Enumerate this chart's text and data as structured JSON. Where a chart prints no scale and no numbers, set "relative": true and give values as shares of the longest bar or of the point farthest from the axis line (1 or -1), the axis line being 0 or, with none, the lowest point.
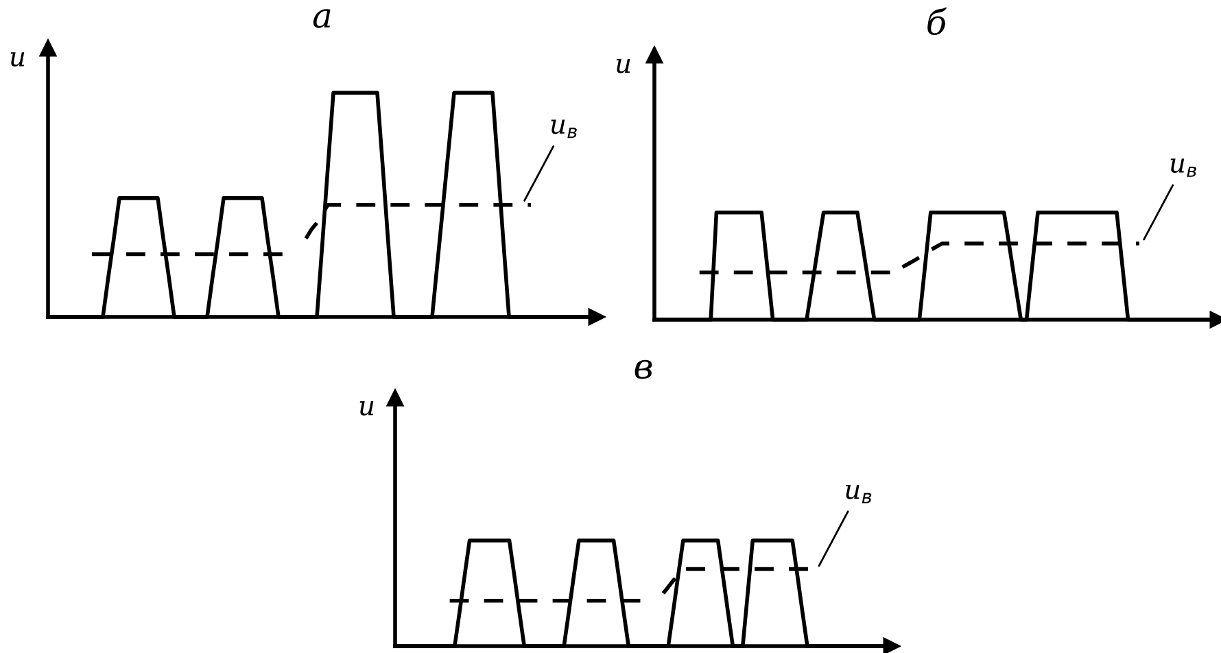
{
  "chart_data": [
    {
      "type": "line",
      "title": "а",
      "ylabel": "u",
      "relative": true,
      "categories": [
        null,
        null,
        null,
        null,
        null,
        null,
        null,
        null,
        null,
        null,
        null,
        null,
        null,
        null,
        null,
        null,
        null,
        null,
        null,
        null,
        null,
        null,
        null,
        null,
        null,
        null,
        null,
        null,
        null,
        null,
        null,
        null,
        null,
        null,
        null,
        null,
        null,
        null,
        null,
        null,
        null,
        null,
        null,
        null,
        null,
        null,
        null,
        null,
        null,
        null,
        null,
        null,
        null,
        null,
        null,
        null,
        null,
        null,
        null,
        null,
        null,
        null,
        null,
        null,
        null,
        null,
        null,
        null,
        null,
        null,
        null,
        null,
        null,
        null,
        null,
        null,
        null,
        null,
        null,
        null,
        null,
        null,
        null,
        null,
        null,
        null,
        null,
        null,
        null,
        null,
        null,
        null,
        null,
        null,
        null,
        null,
        null,
        null,
        null,
        null,
        null
      ],
      "series": [
        {
          "color": "#000000",
          "line_style": "solid",
          "values": [
            0,
            0,
            0,
            0,
            0,
            0,
            0,
            0,
            0,
            0,
            0,
            0.18,
            0.35,
            0.53,
            0.53,
            0.53,
            0.53,
            0.53,
            0.53,
            0.53,
            0.53,
            0.35,
            0.18,
            0,
            0,
            0,
            0,
            0,
            0,
            0,
            0.18,
            0.35,
            0.53,
            0.53,
            0.53,
            0.53,
            0.53,
            0.53,
            0.53,
            0.53,
            0.35,
            0.18,
            0,
            0,
            0,
            0,
            0,
            0,
            0,
            0,
            0.33,
            0.67,
            1,
            1,
            1,
            1,
            1,
            1,
            1,
            1,
            1,
            0.67,
            0.33,
            0,
            0,
            0,
            0,
            0,
            0,
            0,
            0,
            0.25,
            0.5,
            0.75,
            1,
            1,
            1,
            1,
            1,
            1,
            1,
            1,
            0.67,
            0.33,
            0,
            0,
            0,
            0,
            0,
            0,
            0,
            0,
            0,
            0,
            0,
            0,
            0,
            0,
            0,
            0,
            0
          ]
        },
        {
          "color": "#000000",
          "line_style": "dashed",
          "values": [
            null,
            null,
            null,
            null,
            null,
            null,
            null,
            null,
            0.28,
            0.28,
            0.28,
            0.28,
            0.28,
            0.28,
            0.28,
            0.28,
            0.28,
            0.28,
            0.28,
            0.28,
            0.28,
            0.28,
            0.28,
            0.28,
            0.28,
            0.28,
            0.28,
            0.28,
            0.28,
            0.28,
            0.28,
            0.28,
            0.28,
            0.28,
            0.28,
            0.28,
            0.28,
            0.28,
            0.28,
            0.28,
            0.28,
            0.28,
            0.28,
            0.28,
            null,
            null,
            null,
            0.35,
            0.39,
            0.42,
            0.46,
            0.5,
            0.5,
            0.5,
            0.5,
            0.5,
            0.5,
            0.5,
            0.5,
            0.5,
            0.5,
            0.5,
            0.5,
            0.5,
            0.5,
            0.5,
            0.5,
            0.5,
            0.5,
            0.5,
            0.5,
            0.5,
            0.5,
            0.5,
            0.5,
            0.5,
            0.5,
            0.5,
            0.5,
            0.5,
            0.5,
            0.5,
            0.5,
            0.5,
            0.5,
            0.5,
            0.5,
            0.5,
            0.5,
            null,
            null,
            null,
            null,
            null,
            null,
            null,
            null,
            null,
            null,
            null,
            null
          ]
        }
      ],
      "annotations": [
        "u$_{в}$"
      ]
    },
    {
      "type": "line",
      "title": "б",
      "ylabel": "u",
      "relative": true,
      "categories": [
        null,
        null,
        null,
        null,
        null,
        null,
        null,
        null,
        null,
        null,
        null,
        null,
        null,
        null,
        null,
        null,
        null,
        null,
        null,
        null,
        null,
        null,
        null,
        null,
        null,
        null,
        null,
        null,
        null,
        null,
        null,
        null,
        null,
        null,
        null,
        null,
        null,
        null,
        null,
        null,
        null,
        null,
        null,
        null,
        null,
        null,
        null,
        null,
        null,
        null,
        null,
        null,
        null,
        null,
        null,
        null,
        null,
        null,
        null,
        null,
        null,
        null,
        null,
        null,
        null,
        null,
        null,
        null,
        null,
        null,
        null,
        null,
        null,
        null,
        null,
        null,
        null,
        null,
        null,
        null,
        null,
        null,
        null,
        null,
        null,
        null,
        null,
        null,
        null,
        null,
        null,
        null,
        null,
        null,
        null,
        null,
        null,
        null,
        null,
        null,
        null
      ],
      "series": [
        {
          "color": "#000000",
          "line_style": "solid",
          "values": [
            0,
            0,
            0,
            0,
            0,
            0,
            0,
            0,
            0,
            0,
            0,
            1,
            1,
            1,
            1,
            1,
            1,
            1,
            1,
            1,
            0.5,
            0,
            0,
            0,
            0,
            0,
            0,
            0,
            0.33,
            0.67,
            1,
            1,
            1,
            1,
            1,
            1,
            1,
            0.67,
            0.33,
            0,
            0,
            0,
            0,
            0,
            0,
            0,
            0,
            0,
            0.5,
            1,
            1,
            1,
            1,
            1,
            1,
            1,
            1,
            1,
            1,
            1,
            1,
            1,
            1,
            0.67,
            0.33,
            0,
            0,
            0.5,
            1,
            1,
            1,
            1,
            1,
            1,
            1,
            1,
            1,
            1,
            1,
            1,
            1,
            1,
            1,
            0.5,
            0,
            0,
            0,
            0,
            0,
            0,
            0,
            0,
            0,
            0,
            0,
            0,
            0,
            0,
            0,
            0,
            0
          ]
        },
        {
          "color": "#000000",
          "line_style": "dashed",
          "values": [
            null,
            null,
            null,
            null,
            null,
            null,
            null,
            null,
            0.44,
            0.44,
            0.44,
            0.44,
            0.44,
            0.44,
            0.44,
            0.44,
            0.44,
            0.44,
            0.44,
            0.44,
            0.44,
            0.44,
            0.44,
            0.44,
            0.44,
            0.44,
            0.44,
            0.44,
            0.44,
            0.44,
            0.44,
            0.44,
            0.44,
            0.44,
            0.44,
            0.44,
            0.44,
            0.44,
            0.44,
            0.44,
            0.44,
            0.44,
            0.44,
            null,
            0.49,
            0.52,
            0.55,
            0.58,
            0.61,
            0.65,
            0.68,
            0.71,
            0.71,
            0.71,
            0.71,
            0.71,
            0.71,
            0.71,
            0.71,
            0.71,
            0.71,
            0.71,
            0.71,
            0.71,
            0.71,
            0.71,
            0.71,
            0.71,
            0.71,
            0.71,
            0.71,
            0.71,
            0.71,
            0.71,
            0.71,
            0.71,
            0.71,
            0.71,
            0.71,
            0.71,
            0.71,
            0.71,
            0.71,
            0.71,
            0.71,
            0.71,
            0.71,
            null,
            null,
            null,
            null,
            null,
            null,
            null,
            null,
            null,
            null,
            null,
            null,
            null,
            null
          ]
        }
      ],
      "annotations": [
        "u$_{в}$"
      ]
    },
    {
      "type": "line",
      "title": "в",
      "ylabel": "u",
      "relative": true,
      "categories": [
        null,
        null,
        null,
        null,
        null,
        null,
        null,
        null,
        null,
        null,
        null,
        null,
        null,
        null,
        null,
        null,
        null,
        null,
        null,
        null,
        null,
        null,
        null,
        null,
        null,
        null,
        null,
        null,
        null,
        null,
        null,
        null,
        null,
        null,
        null,
        null,
        null,
        null,
        null,
        null,
        null,
        null,
        null,
        null,
        null,
        null,
        null,
        null,
        null,
        null,
        null,
        null,
        null,
        null,
        null,
        null,
        null,
        null,
        null,
        null,
        null,
        null,
        null,
        null,
        null,
        null,
        null,
        null,
        null,
        null,
        null,
        null,
        null,
        null,
        null,
        null,
        null,
        null,
        null,
        null,
        null,
        null,
        null,
        null,
        null,
        null,
        null,
        null,
        null,
        null,
        null,
        null,
        null,
        null,
        null,
        null,
        null,
        null,
        null,
        null,
        null
      ],
      "series": [
        {
          "color": "#000000",
          "line_style": "solid",
          "values": [
            0,
            0,
            0,
            0,
            0,
            0,
            0,
            0,
            0,
            0,
            0,
            0,
            0,
            0.33,
            0.67,
            1,
            1,
            1,
            1,
            1,
            1,
            1,
            1,
            1,
            0.67,
            0.33,
            0,
            0,
            0,
            0,
            0,
            0,
            0,
            0,
            0,
            0.33,
            0.67,
            1,
            1,
            1,
            1,
            1,
            1,
            1,
            1,
            0.67,
            0.33,
            0,
            0,
            0,
            0,
            0,
            0,
            0,
            0,
            0,
            0.33,
            0.67,
            1,
            1,
            1,
            1,
            1,
            1,
            1,
            1,
            0.67,
            0.33,
            0,
            0,
            0,
            0.5,
            1,
            1,
            1,
            1,
            1,
            1,
            1,
            1,
            1,
            0.67,
            0.33,
            0,
            0,
            0,
            0,
            0,
            0,
            0,
            0,
            0,
            0,
            0,
            0,
            0,
            0,
            0,
            0,
            0,
            0
          ]
        },
        {
          "color": "#000000",
          "line_style": "dashed",
          "values": [
            null,
            null,
            null,
            null,
            null,
            null,
            null,
            null,
            null,
            null,
            null,
            0.43,
            0.43,
            0.43,
            0.43,
            0.43,
            0.43,
            0.43,
            0.43,
            0.43,
            0.43,
            0.43,
            0.43,
            0.43,
            0.43,
            0.43,
            0.43,
            0.43,
            0.43,
            0.43,
            0.43,
            0.43,
            0.43,
            0.43,
            0.43,
            0.43,
            0.43,
            0.43,
            0.43,
            0.43,
            0.43,
            0.43,
            0.43,
            0.43,
            0.43,
            0.43,
            0.43,
            0.43,
            0.43,
            0.43,
            0.43,
            null,
            null,
            null,
            0.5,
            0.56,
            0.62,
            0.67,
            0.73,
            0.73,
            0.73,
            0.73,
            0.73,
            0.73,
            0.73,
            0.73,
            0.73,
            0.73,
            0.73,
            0.73,
            0.73,
            0.73,
            0.73,
            0.73,
            0.73,
            0.73,
            0.73,
            0.73,
            0.73,
            0.73,
            0.73,
            0.73,
            0.73,
            0.73,
            0.73,
            0.73,
            0.73,
            null,
            null,
            null,
            null,
            null,
            null,
            null,
            null,
            null,
            null,
            null,
            null,
            null,
            null
          ]
        }
      ],
      "annotations": [
        "u$_{в}$"
      ]
    }
  ]
}
